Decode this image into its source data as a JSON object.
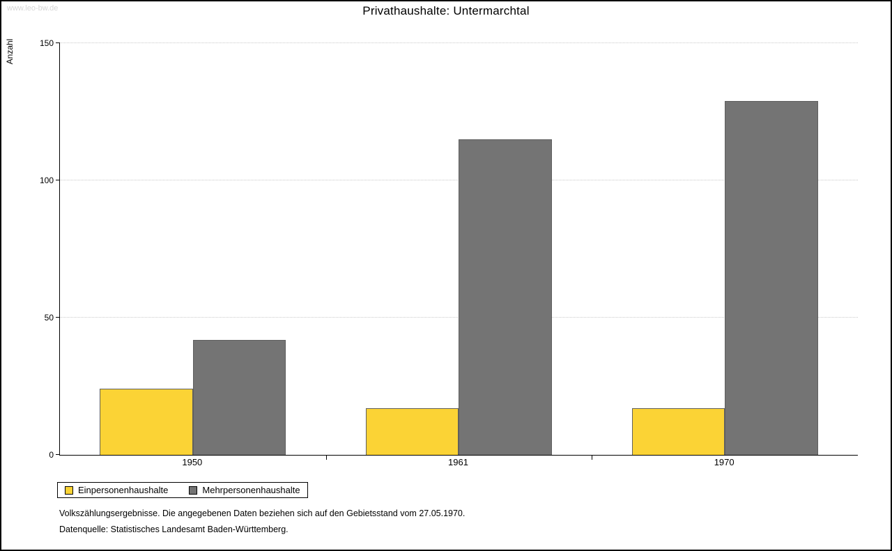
{
  "watermark": "www.leo-bw.de",
  "chart_data": {
    "type": "bar",
    "title": "Privathaushalte: Untermarchtal",
    "xlabel": "",
    "ylabel": "Anzahl",
    "categories": [
      "1950",
      "1961",
      "1970"
    ],
    "series": [
      {
        "name": "Einpersonenhaushalte",
        "color": "#FBD335",
        "values": [
          24,
          17,
          17
        ]
      },
      {
        "name": "Mehrpersonenhaushalte",
        "color": "#747474",
        "values": [
          42,
          115,
          129
        ]
      }
    ],
    "ylim": [
      0,
      150
    ],
    "yticks": [
      0,
      50,
      100,
      150
    ],
    "grid": true,
    "legend_position": "bottom-left"
  },
  "footnotes": [
    "Volkszählungsergebnisse. Die angegebenen Daten beziehen sich auf den Gebietsstand vom 27.05.1970.",
    "Datenquelle: Statistisches Landesamt Baden-Württemberg."
  ]
}
